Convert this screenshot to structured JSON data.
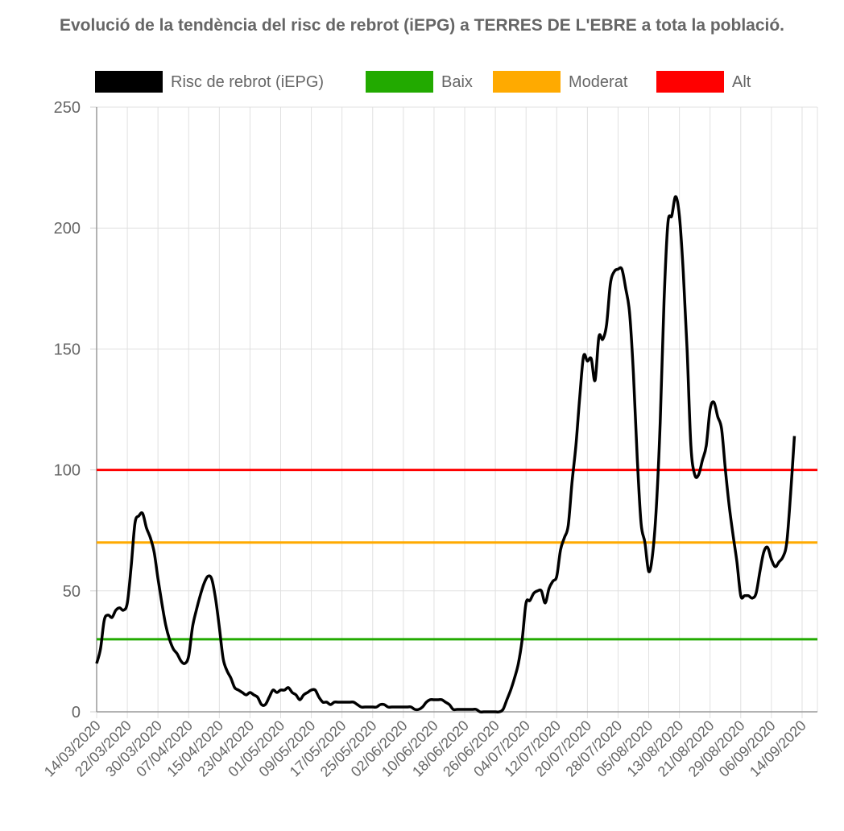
{
  "chart_data": {
    "type": "line",
    "title": "Evolució de la tendència del risc de rebrot (iEPG) a TERRES DE L'EBRE a tota la població.",
    "xlabel": "",
    "ylabel": "",
    "ylim": [
      0,
      250
    ],
    "yticks": [
      0,
      50,
      100,
      150,
      200,
      250
    ],
    "grid": true,
    "legend_position": "top",
    "x_start": "14/03/2020",
    "x_end": "18/09/2020",
    "xticks": [
      "14/03/2020",
      "22/03/2020",
      "30/03/2020",
      "07/04/2020",
      "15/04/2020",
      "23/04/2020",
      "01/05/2020",
      "09/05/2020",
      "17/05/2020",
      "25/05/2020",
      "02/06/2020",
      "10/06/2020",
      "18/06/2020",
      "26/06/2020",
      "04/07/2020",
      "12/07/2020",
      "20/07/2020",
      "28/07/2020",
      "05/08/2020",
      "13/08/2020",
      "21/08/2020",
      "29/08/2020",
      "06/09/2020",
      "14/09/2020"
    ],
    "series": [
      {
        "name": "Risc de rebrot (iEPG)",
        "color": "#000000",
        "points": [
          [
            "14/03/2020",
            20
          ],
          [
            "15/03/2020",
            26
          ],
          [
            "16/03/2020",
            38
          ],
          [
            "17/03/2020",
            40
          ],
          [
            "18/03/2020",
            39
          ],
          [
            "19/03/2020",
            42
          ],
          [
            "20/03/2020",
            43
          ],
          [
            "21/03/2020",
            42
          ],
          [
            "22/03/2020",
            45
          ],
          [
            "23/03/2020",
            60
          ],
          [
            "24/03/2020",
            78
          ],
          [
            "25/03/2020",
            81
          ],
          [
            "26/03/2020",
            82
          ],
          [
            "27/03/2020",
            76
          ],
          [
            "28/03/2020",
            72
          ],
          [
            "29/03/2020",
            66
          ],
          [
            "30/03/2020",
            55
          ],
          [
            "31/03/2020",
            45
          ],
          [
            "01/04/2020",
            36
          ],
          [
            "02/04/2020",
            30
          ],
          [
            "03/04/2020",
            26
          ],
          [
            "04/04/2020",
            24
          ],
          [
            "05/04/2020",
            21
          ],
          [
            "06/04/2020",
            20
          ],
          [
            "07/04/2020",
            23
          ],
          [
            "08/04/2020",
            35
          ],
          [
            "09/04/2020",
            42
          ],
          [
            "10/04/2020",
            48
          ],
          [
            "11/04/2020",
            53
          ],
          [
            "12/04/2020",
            56
          ],
          [
            "13/04/2020",
            55
          ],
          [
            "14/04/2020",
            47
          ],
          [
            "15/04/2020",
            35
          ],
          [
            "16/04/2020",
            22
          ],
          [
            "17/04/2020",
            17
          ],
          [
            "18/04/2020",
            14
          ],
          [
            "19/04/2020",
            10
          ],
          [
            "20/04/2020",
            9
          ],
          [
            "21/04/2020",
            8
          ],
          [
            "22/04/2020",
            7
          ],
          [
            "23/04/2020",
            8
          ],
          [
            "24/04/2020",
            7
          ],
          [
            "25/04/2020",
            6
          ],
          [
            "26/04/2020",
            3
          ],
          [
            "27/04/2020",
            3
          ],
          [
            "28/04/2020",
            6
          ],
          [
            "29/04/2020",
            9
          ],
          [
            "30/04/2020",
            8
          ],
          [
            "01/05/2020",
            9
          ],
          [
            "02/05/2020",
            9
          ],
          [
            "03/05/2020",
            10
          ],
          [
            "04/05/2020",
            8
          ],
          [
            "05/05/2020",
            7
          ],
          [
            "06/05/2020",
            5
          ],
          [
            "07/05/2020",
            7
          ],
          [
            "08/05/2020",
            8
          ],
          [
            "09/05/2020",
            9
          ],
          [
            "10/05/2020",
            9
          ],
          [
            "11/05/2020",
            6
          ],
          [
            "12/05/2020",
            4
          ],
          [
            "13/05/2020",
            4
          ],
          [
            "14/05/2020",
            3
          ],
          [
            "15/05/2020",
            4
          ],
          [
            "16/05/2020",
            4
          ],
          [
            "17/05/2020",
            4
          ],
          [
            "18/05/2020",
            4
          ],
          [
            "19/05/2020",
            4
          ],
          [
            "20/05/2020",
            4
          ],
          [
            "21/05/2020",
            3
          ],
          [
            "22/05/2020",
            2
          ],
          [
            "23/05/2020",
            2
          ],
          [
            "24/05/2020",
            2
          ],
          [
            "25/05/2020",
            2
          ],
          [
            "26/05/2020",
            2
          ],
          [
            "27/05/2020",
            3
          ],
          [
            "28/05/2020",
            3
          ],
          [
            "29/05/2020",
            2
          ],
          [
            "30/05/2020",
            2
          ],
          [
            "31/05/2020",
            2
          ],
          [
            "01/06/2020",
            2
          ],
          [
            "02/06/2020",
            2
          ],
          [
            "03/06/2020",
            2
          ],
          [
            "04/06/2020",
            2
          ],
          [
            "05/06/2020",
            1
          ],
          [
            "06/06/2020",
            1
          ],
          [
            "07/06/2020",
            2
          ],
          [
            "08/06/2020",
            4
          ],
          [
            "09/06/2020",
            5
          ],
          [
            "10/06/2020",
            5
          ],
          [
            "11/06/2020",
            5
          ],
          [
            "12/06/2020",
            5
          ],
          [
            "13/06/2020",
            4
          ],
          [
            "14/06/2020",
            3
          ],
          [
            "15/06/2020",
            1
          ],
          [
            "16/06/2020",
            1
          ],
          [
            "17/06/2020",
            1
          ],
          [
            "18/06/2020",
            1
          ],
          [
            "19/06/2020",
            1
          ],
          [
            "20/06/2020",
            1
          ],
          [
            "21/06/2020",
            1
          ],
          [
            "22/06/2020",
            0
          ],
          [
            "23/06/2020",
            0
          ],
          [
            "24/06/2020",
            0
          ],
          [
            "25/06/2020",
            0
          ],
          [
            "26/06/2020",
            0
          ],
          [
            "27/06/2020",
            0
          ],
          [
            "28/06/2020",
            1
          ],
          [
            "29/06/2020",
            5
          ],
          [
            "30/06/2020",
            9
          ],
          [
            "01/07/2020",
            14
          ],
          [
            "02/07/2020",
            20
          ],
          [
            "03/07/2020",
            30
          ],
          [
            "04/07/2020",
            45
          ],
          [
            "05/07/2020",
            46
          ],
          [
            "06/07/2020",
            49
          ],
          [
            "07/07/2020",
            50
          ],
          [
            "08/07/2020",
            50
          ],
          [
            "09/07/2020",
            45
          ],
          [
            "10/07/2020",
            51
          ],
          [
            "11/07/2020",
            54
          ],
          [
            "12/07/2020",
            56
          ],
          [
            "13/07/2020",
            67
          ],
          [
            "14/07/2020",
            72
          ],
          [
            "15/07/2020",
            77
          ],
          [
            "16/07/2020",
            95
          ],
          [
            "17/07/2020",
            110
          ],
          [
            "18/07/2020",
            130
          ],
          [
            "19/07/2020",
            147
          ],
          [
            "20/07/2020",
            145
          ],
          [
            "21/07/2020",
            146
          ],
          [
            "22/07/2020",
            137
          ],
          [
            "23/07/2020",
            155
          ],
          [
            "24/07/2020",
            154
          ],
          [
            "25/07/2020",
            160
          ],
          [
            "26/07/2020",
            177
          ],
          [
            "27/07/2020",
            182
          ],
          [
            "28/07/2020",
            183
          ],
          [
            "29/07/2020",
            183
          ],
          [
            "30/07/2020",
            175
          ],
          [
            "31/07/2020",
            165
          ],
          [
            "01/08/2020",
            140
          ],
          [
            "02/08/2020",
            105
          ],
          [
            "03/08/2020",
            78
          ],
          [
            "04/08/2020",
            70
          ],
          [
            "05/08/2020",
            58
          ],
          [
            "06/08/2020",
            65
          ],
          [
            "07/08/2020",
            85
          ],
          [
            "08/08/2020",
            120
          ],
          [
            "09/08/2020",
            170
          ],
          [
            "10/08/2020",
            202
          ],
          [
            "11/08/2020",
            205
          ],
          [
            "12/08/2020",
            213
          ],
          [
            "13/08/2020",
            205
          ],
          [
            "14/08/2020",
            182
          ],
          [
            "15/08/2020",
            150
          ],
          [
            "16/08/2020",
            110
          ],
          [
            "17/08/2020",
            98
          ],
          [
            "18/08/2020",
            98
          ],
          [
            "19/08/2020",
            104
          ],
          [
            "20/08/2020",
            110
          ],
          [
            "21/08/2020",
            125
          ],
          [
            "22/08/2020",
            128
          ],
          [
            "23/08/2020",
            122
          ],
          [
            "24/08/2020",
            117
          ],
          [
            "25/08/2020",
            100
          ],
          [
            "26/08/2020",
            85
          ],
          [
            "27/08/2020",
            73
          ],
          [
            "28/08/2020",
            62
          ],
          [
            "29/08/2020",
            48
          ],
          [
            "30/08/2020",
            48
          ],
          [
            "31/08/2020",
            48
          ],
          [
            "01/09/2020",
            47
          ],
          [
            "02/09/2020",
            49
          ],
          [
            "03/09/2020",
            58
          ],
          [
            "04/09/2020",
            66
          ],
          [
            "05/09/2020",
            68
          ],
          [
            "06/09/2020",
            63
          ],
          [
            "07/09/2020",
            60
          ],
          [
            "08/09/2020",
            62
          ],
          [
            "09/09/2020",
            64
          ],
          [
            "10/09/2020",
            70
          ],
          [
            "11/09/2020",
            90
          ],
          [
            "12/09/2020",
            114
          ]
        ]
      },
      {
        "name": "Baix",
        "color": "#22aa00",
        "constant": 30
      },
      {
        "name": "Moderat",
        "color": "#ffaa00",
        "constant": 70
      },
      {
        "name": "Alt",
        "color": "#ff0000",
        "constant": 100
      }
    ]
  }
}
